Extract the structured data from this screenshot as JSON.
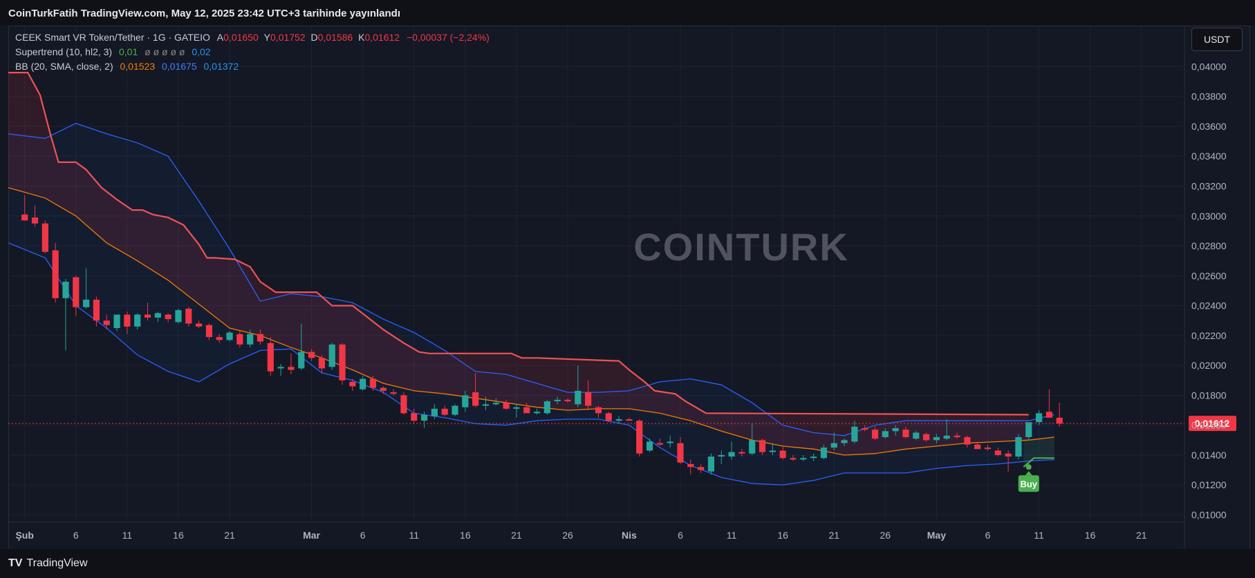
{
  "header": {
    "published": "CoinTurkFatih TradingView.com, May 12, 2025 23:42 UTC+3 tarihinde yayınlandı"
  },
  "footer": {
    "brand": "TradingView",
    "logo_text": "TV"
  },
  "watermark": "COINTURK",
  "currency_button": "USDT",
  "legend": {
    "symbol": "CEEK Smart VR Token/Tether · 1G · GATEIO",
    "ohlc": [
      {
        "k": "A",
        "v": "0,01650"
      },
      {
        "k": "Y",
        "v": "0,01752"
      },
      {
        "k": "D",
        "v": "0,01586"
      },
      {
        "k": "K",
        "v": "0,01612"
      }
    ],
    "change": "−0,00037 (−2,24%)",
    "supertrend_label": "Supertrend (10, hl2, 3)",
    "supertrend_v1": "0,01",
    "supertrend_circles": "ø ø ø ø ø",
    "supertrend_v2": "0,02",
    "bb_label": "BB (20, SMA, close, 2)",
    "bb_basis": "0,01523",
    "bb_upper": "0,01675",
    "bb_lower": "0,01372"
  },
  "price_label": "0,01612",
  "buy_label": "Buy",
  "colors": {
    "up": "#26a69a",
    "down": "#f23645",
    "supertrend": "#f05356",
    "bb_basis": "#f57c00",
    "bb_band": "#2962ff",
    "buy": "#4caf50"
  },
  "chart_data": {
    "type": "candlestick",
    "yaxis_ticks": [
      "0,04000",
      "0,03800",
      "0,03600",
      "0,03400",
      "0,03200",
      "0,03000",
      "0,02800",
      "0,02600",
      "0,02400",
      "0,02200",
      "0,02000",
      "0,01800",
      "0,01600",
      "0,01400",
      "0,01200",
      "0,01000"
    ],
    "ylim": [
      0.0097,
      0.0427
    ],
    "xaxis_labels": [
      {
        "day": 0,
        "label": "Şub"
      },
      {
        "day": 5,
        "label": "6"
      },
      {
        "day": 10,
        "label": "11"
      },
      {
        "day": 15,
        "label": "16"
      },
      {
        "day": 20,
        "label": "21"
      },
      {
        "day": 28,
        "label": "Mar"
      },
      {
        "day": 33,
        "label": "6"
      },
      {
        "day": 38,
        "label": "11"
      },
      {
        "day": 43,
        "label": "16"
      },
      {
        "day": 48,
        "label": "21"
      },
      {
        "day": 53,
        "label": "26"
      },
      {
        "day": 59,
        "label": "Nis"
      },
      {
        "day": 64,
        "label": "6"
      },
      {
        "day": 69,
        "label": "11"
      },
      {
        "day": 74,
        "label": "16"
      },
      {
        "day": 79,
        "label": "21"
      },
      {
        "day": 84,
        "label": "26"
      },
      {
        "day": 89,
        "label": "May"
      },
      {
        "day": 94,
        "label": "6"
      },
      {
        "day": 99,
        "label": "11"
      },
      {
        "day": 104,
        "label": "16"
      },
      {
        "day": 109,
        "label": "21"
      }
    ],
    "xlim": [
      -1.6,
      113
    ],
    "candles": [
      {
        "o": 0.0301,
        "h": 0.0314,
        "l": 0.0297,
        "c": 0.0297
      },
      {
        "o": 0.0299,
        "h": 0.0307,
        "l": 0.0293,
        "c": 0.0295
      },
      {
        "o": 0.0295,
        "h": 0.0297,
        "l": 0.0275,
        "c": 0.0276
      },
      {
        "o": 0.0277,
        "h": 0.0282,
        "l": 0.0242,
        "c": 0.0245
      },
      {
        "o": 0.0245,
        "h": 0.0258,
        "l": 0.021,
        "c": 0.0256
      },
      {
        "o": 0.0259,
        "h": 0.026,
        "l": 0.0233,
        "c": 0.0239
      },
      {
        "o": 0.0239,
        "h": 0.0265,
        "l": 0.0238,
        "c": 0.0244
      },
      {
        "o": 0.0244,
        "h": 0.0246,
        "l": 0.0226,
        "c": 0.023
      },
      {
        "o": 0.023,
        "h": 0.0234,
        "l": 0.0224,
        "c": 0.0227
      },
      {
        "o": 0.0225,
        "h": 0.0234,
        "l": 0.0223,
        "c": 0.0234
      },
      {
        "o": 0.0234,
        "h": 0.0236,
        "l": 0.0221,
        "c": 0.0226
      },
      {
        "o": 0.0226,
        "h": 0.0235,
        "l": 0.0224,
        "c": 0.0234
      },
      {
        "o": 0.0234,
        "h": 0.0242,
        "l": 0.023,
        "c": 0.0232
      },
      {
        "o": 0.0232,
        "h": 0.0236,
        "l": 0.0229,
        "c": 0.0235
      },
      {
        "o": 0.0234,
        "h": 0.0235,
        "l": 0.0229,
        "c": 0.0231
      },
      {
        "o": 0.0229,
        "h": 0.0238,
        "l": 0.0228,
        "c": 0.0237
      },
      {
        "o": 0.0238,
        "h": 0.0239,
        "l": 0.0226,
        "c": 0.0228
      },
      {
        "o": 0.0228,
        "h": 0.023,
        "l": 0.0225,
        "c": 0.0226
      },
      {
        "o": 0.0227,
        "h": 0.0228,
        "l": 0.0217,
        "c": 0.0219
      },
      {
        "o": 0.0219,
        "h": 0.0221,
        "l": 0.0215,
        "c": 0.0217
      },
      {
        "o": 0.0217,
        "h": 0.0223,
        "l": 0.0216,
        "c": 0.0222
      },
      {
        "o": 0.0221,
        "h": 0.0223,
        "l": 0.0212,
        "c": 0.0214
      },
      {
        "o": 0.0214,
        "h": 0.0224,
        "l": 0.0212,
        "c": 0.0221
      },
      {
        "o": 0.0221,
        "h": 0.0224,
        "l": 0.0214,
        "c": 0.0216
      },
      {
        "o": 0.0215,
        "h": 0.0219,
        "l": 0.0193,
        "c": 0.0196
      },
      {
        "o": 0.0198,
        "h": 0.0201,
        "l": 0.0193,
        "c": 0.0199
      },
      {
        "o": 0.0199,
        "h": 0.0208,
        "l": 0.0194,
        "c": 0.0197
      },
      {
        "o": 0.0198,
        "h": 0.0228,
        "l": 0.0197,
        "c": 0.0209
      },
      {
        "o": 0.0209,
        "h": 0.0211,
        "l": 0.0203,
        "c": 0.0205
      },
      {
        "o": 0.0205,
        "h": 0.0207,
        "l": 0.0195,
        "c": 0.0198
      },
      {
        "o": 0.0199,
        "h": 0.0215,
        "l": 0.0197,
        "c": 0.0214
      },
      {
        "o": 0.0214,
        "h": 0.0215,
        "l": 0.0187,
        "c": 0.019
      },
      {
        "o": 0.0189,
        "h": 0.0191,
        "l": 0.0183,
        "c": 0.0186
      },
      {
        "o": 0.0184,
        "h": 0.0193,
        "l": 0.0183,
        "c": 0.0191
      },
      {
        "o": 0.0191,
        "h": 0.0193,
        "l": 0.0183,
        "c": 0.0185
      },
      {
        "o": 0.0185,
        "h": 0.0186,
        "l": 0.0181,
        "c": 0.0183
      },
      {
        "o": 0.0182,
        "h": 0.0184,
        "l": 0.018,
        "c": 0.0181
      },
      {
        "o": 0.018,
        "h": 0.0182,
        "l": 0.0167,
        "c": 0.0168
      },
      {
        "o": 0.0168,
        "h": 0.0171,
        "l": 0.0161,
        "c": 0.0163
      },
      {
        "o": 0.0163,
        "h": 0.0169,
        "l": 0.0158,
        "c": 0.0167
      },
      {
        "o": 0.0166,
        "h": 0.0174,
        "l": 0.0164,
        "c": 0.0171
      },
      {
        "o": 0.0171,
        "h": 0.0173,
        "l": 0.0166,
        "c": 0.0167
      },
      {
        "o": 0.0167,
        "h": 0.0174,
        "l": 0.0166,
        "c": 0.0173
      },
      {
        "o": 0.0172,
        "h": 0.0183,
        "l": 0.0169,
        "c": 0.018
      },
      {
        "o": 0.0182,
        "h": 0.0195,
        "l": 0.0172,
        "c": 0.0173
      },
      {
        "o": 0.0173,
        "h": 0.0179,
        "l": 0.017,
        "c": 0.0174
      },
      {
        "o": 0.0174,
        "h": 0.0178,
        "l": 0.0173,
        "c": 0.0175
      },
      {
        "o": 0.0175,
        "h": 0.0177,
        "l": 0.017,
        "c": 0.0171
      },
      {
        "o": 0.0171,
        "h": 0.0174,
        "l": 0.0165,
        "c": 0.0172
      },
      {
        "o": 0.0172,
        "h": 0.0175,
        "l": 0.0169,
        "c": 0.0168
      },
      {
        "o": 0.0168,
        "h": 0.0171,
        "l": 0.0167,
        "c": 0.0169
      },
      {
        "o": 0.0168,
        "h": 0.0177,
        "l": 0.0167,
        "c": 0.0176
      },
      {
        "o": 0.0176,
        "h": 0.0179,
        "l": 0.0174,
        "c": 0.0177
      },
      {
        "o": 0.0177,
        "h": 0.0178,
        "l": 0.0175,
        "c": 0.0176
      },
      {
        "o": 0.0174,
        "h": 0.02,
        "l": 0.0172,
        "c": 0.0183
      },
      {
        "o": 0.0182,
        "h": 0.019,
        "l": 0.017,
        "c": 0.0173
      },
      {
        "o": 0.0172,
        "h": 0.0173,
        "l": 0.0165,
        "c": 0.0168
      },
      {
        "o": 0.0168,
        "h": 0.0169,
        "l": 0.0162,
        "c": 0.0163
      },
      {
        "o": 0.0163,
        "h": 0.0166,
        "l": 0.0161,
        "c": 0.0164
      },
      {
        "o": 0.0164,
        "h": 0.0165,
        "l": 0.0163,
        "c": 0.0163
      },
      {
        "o": 0.0163,
        "h": 0.0164,
        "l": 0.0139,
        "c": 0.0141
      },
      {
        "o": 0.0143,
        "h": 0.0151,
        "l": 0.0142,
        "c": 0.0149
      },
      {
        "o": 0.0148,
        "h": 0.0151,
        "l": 0.0146,
        "c": 0.0147
      },
      {
        "o": 0.0148,
        "h": 0.0153,
        "l": 0.0145,
        "c": 0.0149
      },
      {
        "o": 0.0148,
        "h": 0.0152,
        "l": 0.0134,
        "c": 0.0135
      },
      {
        "o": 0.0134,
        "h": 0.0137,
        "l": 0.0127,
        "c": 0.0132
      },
      {
        "o": 0.0132,
        "h": 0.0134,
        "l": 0.0128,
        "c": 0.013
      },
      {
        "o": 0.0129,
        "h": 0.0141,
        "l": 0.0127,
        "c": 0.0139
      },
      {
        "o": 0.0139,
        "h": 0.0143,
        "l": 0.0134,
        "c": 0.014
      },
      {
        "o": 0.0139,
        "h": 0.0149,
        "l": 0.0137,
        "c": 0.0142
      },
      {
        "o": 0.0142,
        "h": 0.0144,
        "l": 0.0139,
        "c": 0.0141
      },
      {
        "o": 0.0141,
        "h": 0.0161,
        "l": 0.014,
        "c": 0.015
      },
      {
        "o": 0.015,
        "h": 0.0151,
        "l": 0.014,
        "c": 0.0142
      },
      {
        "o": 0.0142,
        "h": 0.0148,
        "l": 0.014,
        "c": 0.0143
      },
      {
        "o": 0.0143,
        "h": 0.0146,
        "l": 0.0137,
        "c": 0.0138
      },
      {
        "o": 0.0138,
        "h": 0.014,
        "l": 0.0136,
        "c": 0.0137
      },
      {
        "o": 0.0137,
        "h": 0.014,
        "l": 0.0136,
        "c": 0.0138
      },
      {
        "o": 0.0138,
        "h": 0.0141,
        "l": 0.0136,
        "c": 0.0139
      },
      {
        "o": 0.0138,
        "h": 0.0147,
        "l": 0.0137,
        "c": 0.0145
      },
      {
        "o": 0.0145,
        "h": 0.0155,
        "l": 0.0143,
        "c": 0.0148
      },
      {
        "o": 0.0148,
        "h": 0.0151,
        "l": 0.0146,
        "c": 0.015
      },
      {
        "o": 0.0149,
        "h": 0.0163,
        "l": 0.0148,
        "c": 0.0159
      },
      {
        "o": 0.0158,
        "h": 0.016,
        "l": 0.0156,
        "c": 0.0157
      },
      {
        "o": 0.0157,
        "h": 0.0159,
        "l": 0.015,
        "c": 0.0151
      },
      {
        "o": 0.0152,
        "h": 0.0158,
        "l": 0.0151,
        "c": 0.0156
      },
      {
        "o": 0.0156,
        "h": 0.016,
        "l": 0.0153,
        "c": 0.0158
      },
      {
        "o": 0.0157,
        "h": 0.0159,
        "l": 0.0151,
        "c": 0.0152
      },
      {
        "o": 0.0151,
        "h": 0.0156,
        "l": 0.015,
        "c": 0.0155
      },
      {
        "o": 0.0154,
        "h": 0.0155,
        "l": 0.0149,
        "c": 0.015
      },
      {
        "o": 0.015,
        "h": 0.0154,
        "l": 0.0148,
        "c": 0.0152
      },
      {
        "o": 0.0151,
        "h": 0.0164,
        "l": 0.015,
        "c": 0.0153
      },
      {
        "o": 0.0153,
        "h": 0.0155,
        "l": 0.0151,
        "c": 0.0152
      },
      {
        "o": 0.0152,
        "h": 0.0153,
        "l": 0.0145,
        "c": 0.0147
      },
      {
        "o": 0.0147,
        "h": 0.0149,
        "l": 0.0145,
        "c": 0.0144
      },
      {
        "o": 0.0145,
        "h": 0.0147,
        "l": 0.0143,
        "c": 0.0144
      },
      {
        "o": 0.0143,
        "h": 0.0145,
        "l": 0.0139,
        "c": 0.014
      },
      {
        "o": 0.0141,
        "h": 0.0143,
        "l": 0.0129,
        "c": 0.0139
      },
      {
        "o": 0.0139,
        "h": 0.0154,
        "l": 0.0137,
        "c": 0.0152
      },
      {
        "o": 0.0152,
        "h": 0.0162,
        "l": 0.015,
        "c": 0.0162
      },
      {
        "o": 0.0162,
        "h": 0.017,
        "l": 0.016,
        "c": 0.0168
      },
      {
        "o": 0.0169,
        "h": 0.0184,
        "l": 0.0165,
        "c": 0.0165
      },
      {
        "o": 0.0165,
        "h": 0.0175,
        "l": 0.0159,
        "c": 0.0161
      }
    ],
    "supertrend": {
      "days": [
        -1.6,
        0.3,
        1.5,
        2.5,
        3.3,
        5.0,
        6.0,
        7.5,
        9.0,
        10.5,
        11.5,
        12.5,
        14.0,
        15.5,
        17.0,
        17.8,
        18.5,
        20.5,
        22.0,
        23.0,
        24.5,
        27.0,
        28.5,
        30.0,
        30.5,
        32.0,
        33.5,
        35.0,
        37.0,
        38.5,
        39.5,
        47.5,
        48.5,
        50.0,
        58.0,
        59.0,
        60.5,
        61.5,
        62.5,
        63.5,
        64.5,
        65.5,
        66.5,
        98.0
      ],
      "values": [
        0.0396,
        0.0396,
        0.0381,
        0.0355,
        0.0336,
        0.0336,
        0.0331,
        0.0319,
        0.0311,
        0.0304,
        0.0304,
        0.0301,
        0.0299,
        0.0294,
        0.0281,
        0.0272,
        0.0272,
        0.0271,
        0.0266,
        0.0256,
        0.0249,
        0.0249,
        0.0249,
        0.024,
        0.024,
        0.024,
        0.0232,
        0.0224,
        0.0215,
        0.0209,
        0.0208,
        0.0208,
        0.0205,
        0.0205,
        0.0203,
        0.0197,
        0.0189,
        0.0183,
        0.0182,
        0.0181,
        0.0176,
        0.0172,
        0.0168,
        0.0167
      ]
    },
    "supertrend_up": {
      "days": [
        97.5,
        98.5,
        100.5
      ],
      "values": [
        0.0132,
        0.0138,
        0.0138
      ]
    },
    "bb": {
      "days": [
        -1.6,
        2,
        5,
        8,
        11,
        14,
        17,
        20,
        23,
        26,
        29,
        32,
        35,
        38,
        41,
        44,
        47,
        50,
        53,
        56,
        59,
        62,
        65,
        68,
        71,
        74,
        77,
        80,
        83,
        86,
        89,
        92,
        95,
        98,
        100.5
      ],
      "upper": [
        0.0355,
        0.0352,
        0.0362,
        0.0355,
        0.0349,
        0.034,
        0.031,
        0.0278,
        0.0243,
        0.0248,
        0.0246,
        0.0242,
        0.0231,
        0.0222,
        0.021,
        0.0196,
        0.0194,
        0.0188,
        0.0182,
        0.0182,
        0.0183,
        0.0189,
        0.0191,
        0.0187,
        0.0175,
        0.016,
        0.0155,
        0.0153,
        0.016,
        0.0163,
        0.0163,
        0.0163,
        0.0163,
        0.0163,
        0.0167
      ],
      "basis": [
        0.0319,
        0.0312,
        0.03,
        0.0282,
        0.027,
        0.0257,
        0.0241,
        0.0225,
        0.022,
        0.0212,
        0.0205,
        0.0197,
        0.0188,
        0.0183,
        0.0181,
        0.0178,
        0.0175,
        0.0172,
        0.017,
        0.0171,
        0.0171,
        0.0168,
        0.0163,
        0.0156,
        0.015,
        0.0146,
        0.0144,
        0.014,
        0.0141,
        0.0144,
        0.0146,
        0.0148,
        0.0149,
        0.015,
        0.0152
      ],
      "lower": [
        0.0282,
        0.0272,
        0.024,
        0.0225,
        0.0207,
        0.0196,
        0.0189,
        0.0201,
        0.021,
        0.0211,
        0.0195,
        0.019,
        0.0182,
        0.0168,
        0.0165,
        0.0161,
        0.016,
        0.0163,
        0.0164,
        0.0164,
        0.016,
        0.0145,
        0.0133,
        0.0125,
        0.0121,
        0.012,
        0.0123,
        0.0128,
        0.0128,
        0.0128,
        0.0131,
        0.0133,
        0.0134,
        0.0136,
        0.0137
      ]
    },
    "last_price": 0.01612,
    "buy_signal_day": 98
  }
}
